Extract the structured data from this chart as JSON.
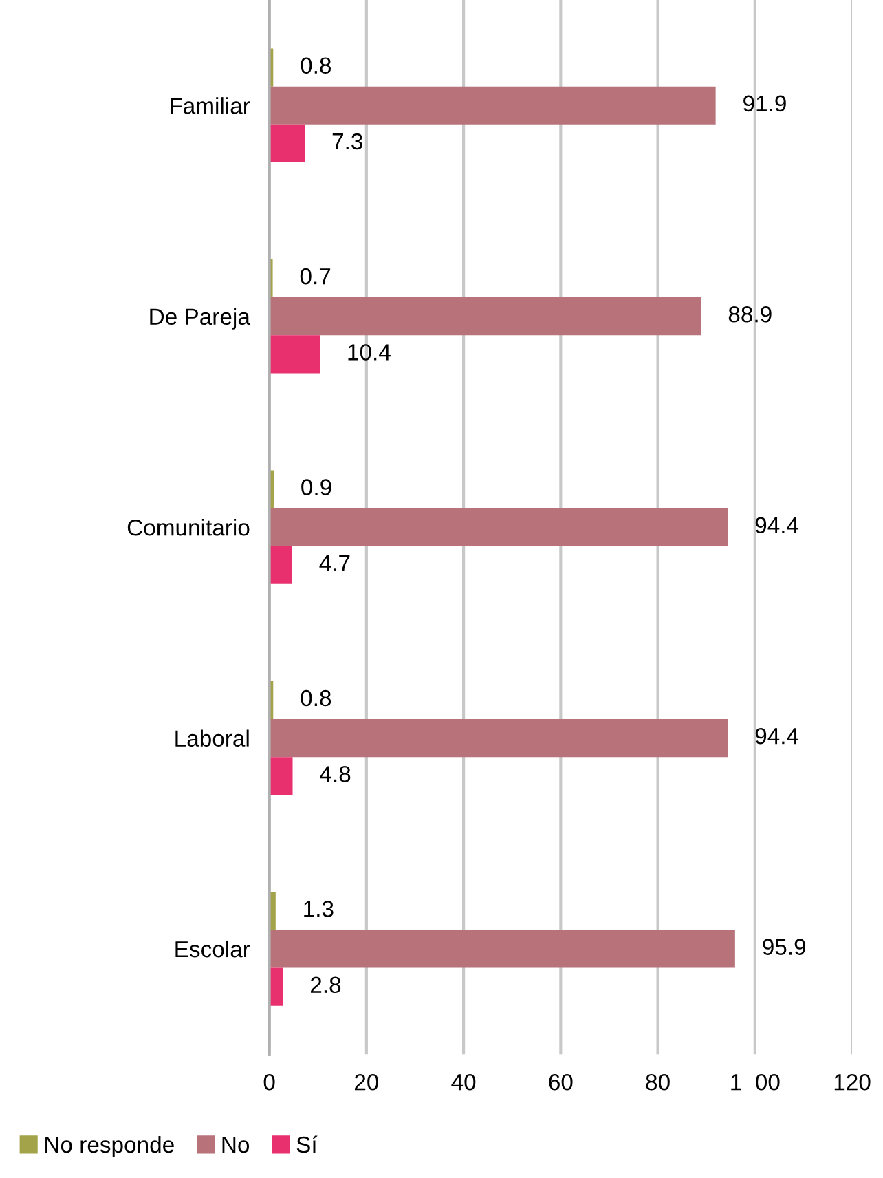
{
  "chart_data": {
    "type": "bar",
    "orientation": "horizontal",
    "categories": [
      "Familiar",
      "De Pareja",
      "Comunitario",
      "Laboral",
      "Escolar"
    ],
    "series": [
      {
        "name": "No responde",
        "color": "#a3a34a",
        "values": [
          0.8,
          0.7,
          0.9,
          0.8,
          1.3
        ]
      },
      {
        "name": "No",
        "color": "#b8737a",
        "values": [
          91.9,
          88.9,
          94.4,
          94.4,
          95.9
        ]
      },
      {
        "name": "Sí",
        "color": "#e8306e",
        "values": [
          7.3,
          10.4,
          4.7,
          4.8,
          2.8
        ]
      }
    ],
    "xlim": [
      0,
      120
    ],
    "xticks": [
      0,
      20,
      40,
      60,
      80,
      {
        "value": 100,
        "label": "1  00"
      },
      120
    ],
    "grid": "x",
    "legend": "bottom left",
    "data_labels": true
  }
}
